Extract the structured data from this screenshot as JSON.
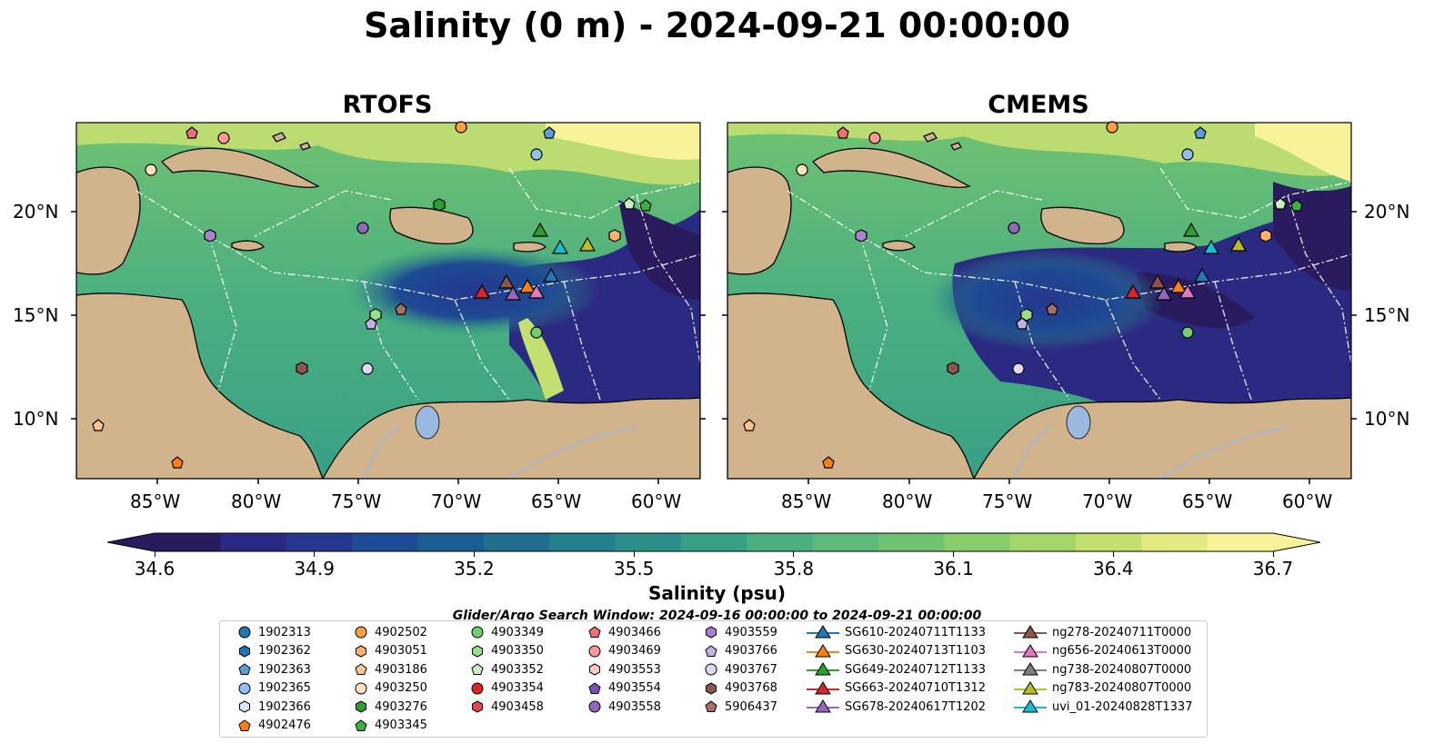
{
  "title": "Salinity (0 m) - 2024-09-21 00:00:00",
  "panels": [
    {
      "title": "RTOFS"
    },
    {
      "title": "CMEMS"
    }
  ],
  "lat_labels": [
    "20°N",
    "15°N",
    "10°N"
  ],
  "lon_labels": [
    "85°W",
    "80°W",
    "75°W",
    "70°W",
    "65°W",
    "60°W"
  ],
  "colorbar": {
    "title": "Salinity (psu)",
    "ticks": [
      "34.6",
      "34.9",
      "35.2",
      "35.5",
      "35.8",
      "36.1",
      "36.4",
      "36.7"
    ],
    "min": 34.6,
    "max": 36.7,
    "colors": [
      "#2a1a5e",
      "#2b2a82",
      "#25378f",
      "#1e4b93",
      "#1d5e92",
      "#206f8f",
      "#25808d",
      "#2c8f89",
      "#38a085",
      "#4baf7f",
      "#5cb979",
      "#6fc271",
      "#88cc6c",
      "#a4d56a",
      "#c3df70",
      "#e4e982",
      "#f8f39a"
    ]
  },
  "search_window": "Glider/Argo Search Window: 2024-09-16 00:00:00 to 2024-09-21 00:00:00",
  "map_colors": {
    "land": "#d2b48c",
    "lake": "#9ab8e0",
    "river": "#9ab8e0"
  },
  "legend": [
    {
      "label": "1902313",
      "marker": "circle",
      "color": "#1f77b4"
    },
    {
      "label": "1902362",
      "marker": "hexagon",
      "color": "#1f77b4"
    },
    {
      "label": "1902363",
      "marker": "pentagon",
      "color": "#5aa0d8"
    },
    {
      "label": "1902365",
      "marker": "circle",
      "color": "#8fc1ea"
    },
    {
      "label": "1902366",
      "marker": "hexagon",
      "color": "#d6e8f6"
    },
    {
      "label": "4902476",
      "marker": "pentagon",
      "color": "#ff7f0e"
    },
    {
      "label": "4902502",
      "marker": "circle",
      "color": "#ff9f40"
    },
    {
      "label": "4903051",
      "marker": "hexagon",
      "color": "#ffb070"
    },
    {
      "label": "4903186",
      "marker": "pentagon",
      "color": "#ffc38f"
    },
    {
      "label": "4903250",
      "marker": "circle",
      "color": "#ffe0c0"
    },
    {
      "label": "4903276",
      "marker": "hexagon",
      "color": "#2ca02c"
    },
    {
      "label": "4903345",
      "marker": "pentagon",
      "color": "#3cb043"
    },
    {
      "label": "4903349",
      "marker": "circle",
      "color": "#6fcf6f"
    },
    {
      "label": "4903350",
      "marker": "hexagon",
      "color": "#98df8a"
    },
    {
      "label": "4903352",
      "marker": "pentagon",
      "color": "#c8efc0"
    },
    {
      "label": "4903354",
      "marker": "circle",
      "color": "#d62728"
    },
    {
      "label": "4903458",
      "marker": "hexagon",
      "color": "#e0474c"
    },
    {
      "label": "4903466",
      "marker": "pentagon",
      "color": "#f07070"
    },
    {
      "label": "4903469",
      "marker": "circle",
      "color": "#ff9896"
    },
    {
      "label": "4903553",
      "marker": "hexagon",
      "color": "#ffc8c6"
    },
    {
      "label": "4903554",
      "marker": "pentagon",
      "color": "#7b4fb8"
    },
    {
      "label": "4903558",
      "marker": "circle",
      "color": "#9467bd"
    },
    {
      "label": "4903559",
      "marker": "hexagon",
      "color": "#a983cf"
    },
    {
      "label": "4903766",
      "marker": "pentagon",
      "color": "#c5b0e6"
    },
    {
      "label": "4903767",
      "marker": "circle",
      "color": "#e3d6f5"
    },
    {
      "label": "4903768",
      "marker": "hexagon",
      "color": "#8c564b"
    },
    {
      "label": "5906437",
      "marker": "pentagon",
      "color": "#a87060"
    },
    {
      "label": "SG610-20240711T1133",
      "marker": "triangle-line",
      "color": "#1f77b4"
    },
    {
      "label": "SG630-20240713T1103",
      "marker": "triangle-line",
      "color": "#ff7f0e"
    },
    {
      "label": "SG649-20240712T1133",
      "marker": "triangle-line",
      "color": "#2ca02c"
    },
    {
      "label": "SG663-20240710T1312",
      "marker": "triangle-line",
      "color": "#d62728"
    },
    {
      "label": "SG678-20240617T1202",
      "marker": "triangle-line",
      "color": "#9467bd"
    },
    {
      "label": "ng278-20240711T0000",
      "marker": "triangle-line",
      "color": "#8c564b"
    },
    {
      "label": "ng656-20240613T0000",
      "marker": "triangle-line",
      "color": "#e377c2"
    },
    {
      "label": "ng738-20240807T0000",
      "marker": "triangle-line",
      "color": "#7f7f7f"
    },
    {
      "label": "ng783-20240807T0000",
      "marker": "triangle-line",
      "color": "#bcbd22"
    },
    {
      "label": "uvi_01-20240828T1337",
      "marker": "triangle-line",
      "color": "#17becf"
    }
  ]
}
